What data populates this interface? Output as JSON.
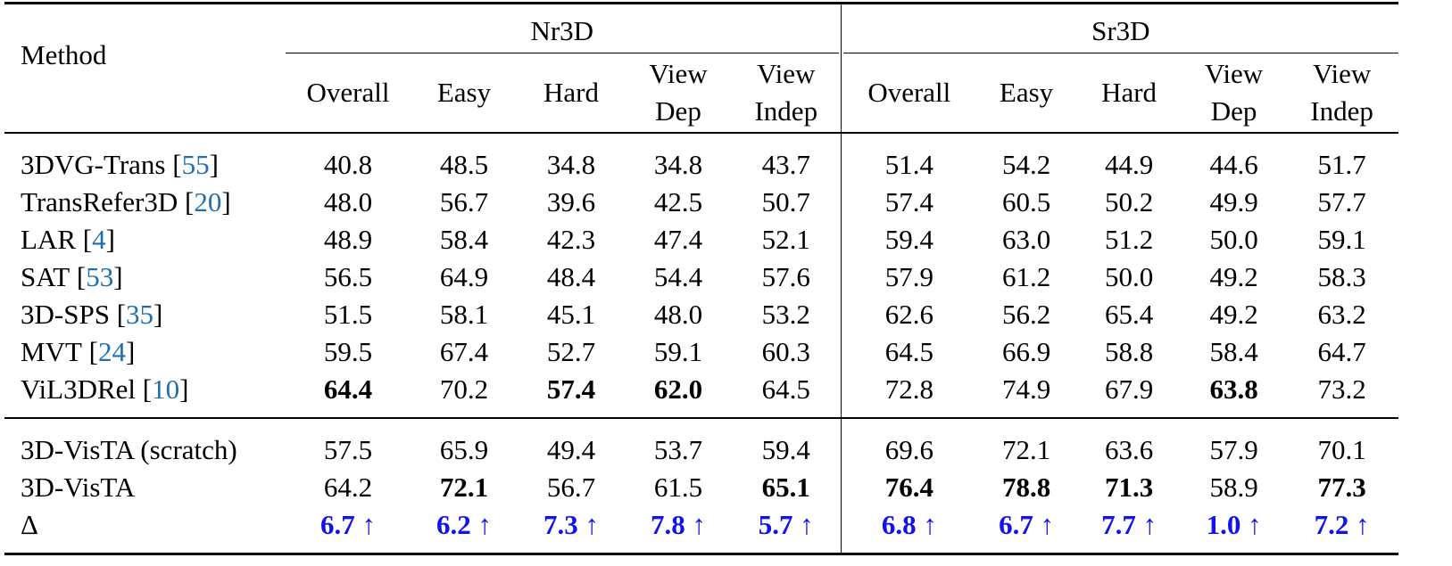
{
  "header": {
    "method": "Method",
    "groups": [
      "Nr3D",
      "Sr3D"
    ],
    "columns": [
      [
        "Overall"
      ],
      [
        "Easy"
      ],
      [
        "Hard"
      ],
      [
        "View",
        "Dep"
      ],
      [
        "View",
        "Indep"
      ],
      [
        "Overall"
      ],
      [
        "Easy"
      ],
      [
        "Hard"
      ],
      [
        "View",
        "Dep"
      ],
      [
        "View",
        "Indep"
      ]
    ]
  },
  "cite_brackets": [
    "[",
    "]"
  ],
  "sections": [
    {
      "rows": [
        {
          "method": "3DVG-Trans",
          "cite": "55",
          "cells": [
            "40.8",
            "48.5",
            "34.8",
            "34.8",
            "43.7",
            "51.4",
            "54.2",
            "44.9",
            "44.6",
            "51.7"
          ]
        },
        {
          "method": "TransRefer3D",
          "cite": "20",
          "cells": [
            "48.0",
            "56.7",
            "39.6",
            "42.5",
            "50.7",
            "57.4",
            "60.5",
            "50.2",
            "49.9",
            "57.7"
          ]
        },
        {
          "method": "LAR",
          "cite": "4",
          "cells": [
            "48.9",
            "58.4",
            "42.3",
            "47.4",
            "52.1",
            "59.4",
            "63.0",
            "51.2",
            "50.0",
            "59.1"
          ]
        },
        {
          "method": "SAT",
          "cite": "53",
          "cells": [
            "56.5",
            "64.9",
            "48.4",
            "54.4",
            "57.6",
            "57.9",
            "61.2",
            "50.0",
            "49.2",
            "58.3"
          ]
        },
        {
          "method": "3D-SPS",
          "cite": "35",
          "cells": [
            "51.5",
            "58.1",
            "45.1",
            "48.0",
            "53.2",
            "62.6",
            "56.2",
            "65.4",
            "49.2",
            "63.2"
          ]
        },
        {
          "method": "MVT",
          "cite": "24",
          "cells": [
            "59.5",
            "67.4",
            "52.7",
            "59.1",
            "60.3",
            "64.5",
            "66.9",
            "58.8",
            "58.4",
            "64.7"
          ]
        },
        {
          "method": "ViL3DRel",
          "cite": "10",
          "cells": [
            "64.4",
            "70.2",
            "57.4",
            "62.0",
            "64.5",
            "72.8",
            "74.9",
            "67.9",
            "63.8",
            "73.2"
          ],
          "bold": [
            0,
            2,
            3,
            8
          ]
        }
      ]
    },
    {
      "rows": [
        {
          "method": "3D-VisTA (scratch)",
          "cells": [
            "57.5",
            "65.9",
            "49.4",
            "53.7",
            "59.4",
            "69.6",
            "72.1",
            "63.6",
            "57.9",
            "70.1"
          ]
        },
        {
          "method": "3D-VisTA",
          "cells": [
            "64.2",
            "72.1",
            "56.7",
            "61.5",
            "65.1",
            "76.4",
            "78.8",
            "71.3",
            "58.9",
            "77.3"
          ],
          "bold": [
            1,
            4,
            5,
            6,
            7,
            9
          ]
        },
        {
          "method": "Δ",
          "cells": [
            "6.7 ↑",
            "6.2 ↑",
            "7.3 ↑",
            "7.8 ↑",
            "5.7 ↑",
            "6.8 ↑",
            "6.7 ↑",
            "7.7 ↑",
            "1.0 ↑",
            "7.2 ↑"
          ],
          "delta": true
        }
      ]
    }
  ]
}
